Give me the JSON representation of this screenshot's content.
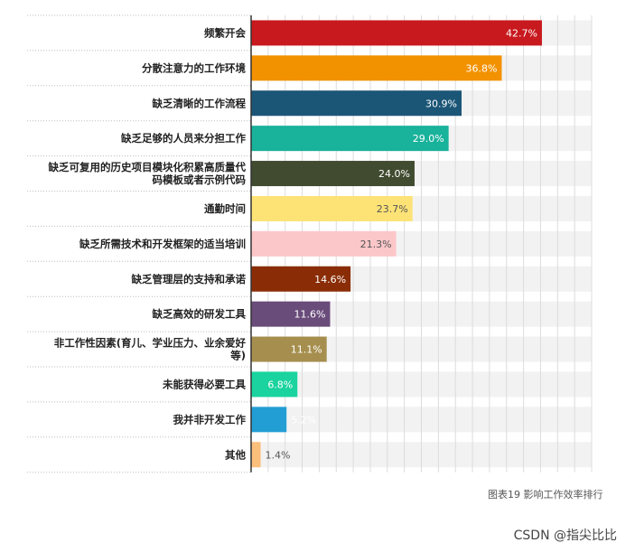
{
  "chart_data": {
    "type": "bar",
    "orientation": "horizontal",
    "categories": [
      [
        "频繁开会"
      ],
      [
        "分散注意力的工作环境"
      ],
      [
        "缺乏清晰的工作流程"
      ],
      [
        "缺乏足够的人员来分担工作"
      ],
      [
        "缺乏可复用的历史项目模块化积累高质量代",
        "码模板或者示例代码"
      ],
      [
        "通勤时间"
      ],
      [
        "缺乏所需技术和开发框架的适当培训"
      ],
      [
        "缺乏管理层的支持和承诺"
      ],
      [
        "缺乏高效的研发工具"
      ],
      [
        "非工作性因素(育儿、学业压力、业余爱好",
        "等)"
      ],
      [
        "未能获得必要工具"
      ],
      [
        "我并非开发工作"
      ],
      [
        "其他"
      ]
    ],
    "values": [
      42.7,
      36.8,
      30.9,
      29.0,
      24.0,
      23.7,
      21.3,
      14.6,
      11.6,
      11.1,
      6.8,
      5.2,
      1.4
    ],
    "value_labels": [
      "42.7%",
      "36.8%",
      "30.9%",
      "29.0%",
      "24.0%",
      "23.7%",
      "21.3%",
      "14.6%",
      "11.6%",
      "11.1%",
      "6.8%",
      "5.2%",
      "1.4%"
    ],
    "colors": [
      "#c8191e",
      "#f39200",
      "#1b5677",
      "#19b29b",
      "#414b30",
      "#fde376",
      "#fcc7c9",
      "#8a2d07",
      "#6a4c7b",
      "#a68f4e",
      "#1ad39e",
      "#239ed5",
      "#fbbf7c"
    ],
    "label_colors": [
      "#ffffff",
      "#ffffff",
      "#ffffff",
      "#ffffff",
      "#ffffff",
      "#555555",
      "#555555",
      "#ffffff",
      "#ffffff",
      "#ffffff",
      "#ffffff",
      "#ffffff",
      "#555555"
    ],
    "xlim": [
      0,
      50
    ],
    "grid": true
  },
  "caption": "图表19 影响工作效率排行",
  "watermark": "CSDN @指尖比比"
}
